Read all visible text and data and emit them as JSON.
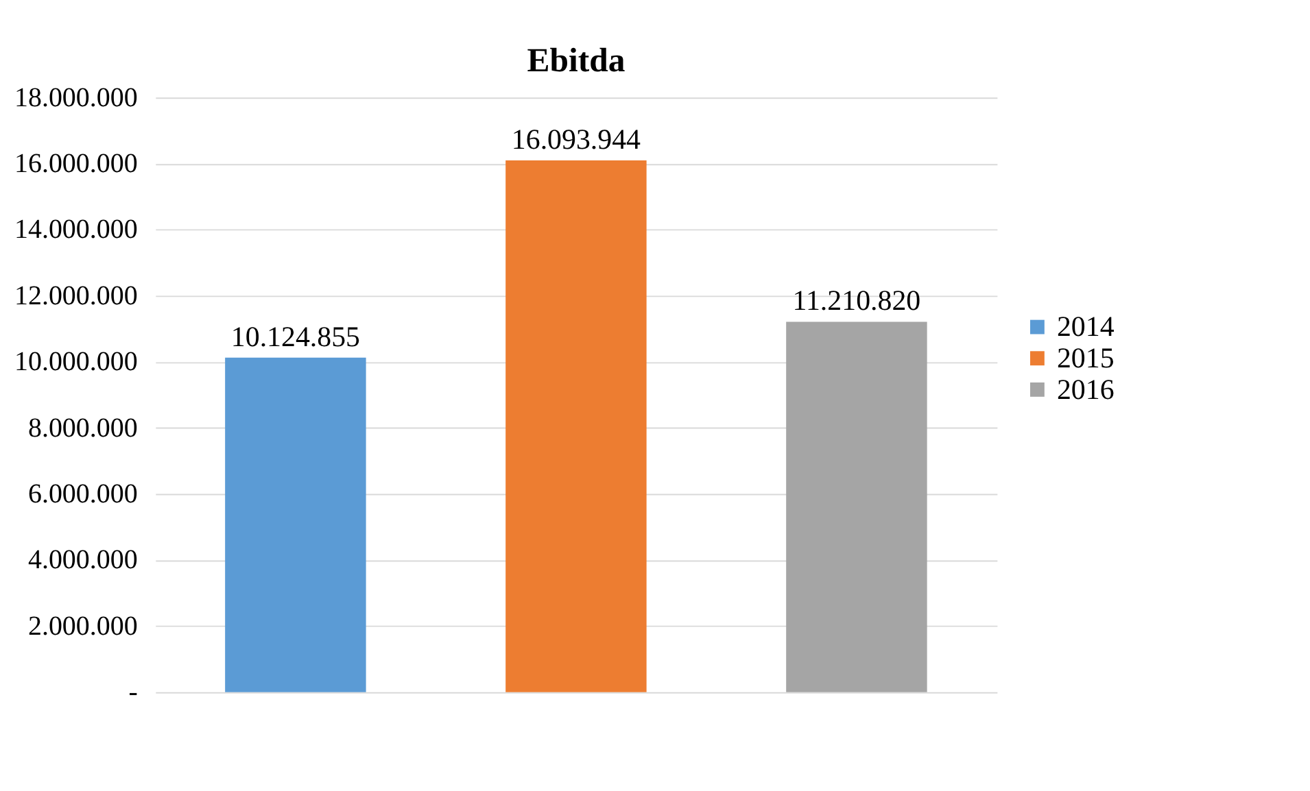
{
  "chart_data": {
    "type": "bar",
    "title": "Ebitda",
    "categories": [
      null
    ],
    "series": [
      {
        "name": "2014",
        "color": "#5b9bd5",
        "values": [
          10124855
        ],
        "value_labels": [
          "10.124.855"
        ]
      },
      {
        "name": "2015",
        "color": "#ed7d31",
        "values": [
          16093944
        ],
        "value_labels": [
          "16.093.944"
        ]
      },
      {
        "name": "2016",
        "color": "#a5a5a5",
        "values": [
          11210820
        ],
        "value_labels": [
          "11.210.820"
        ]
      }
    ],
    "ylim": [
      0,
      18000000
    ],
    "yticks": [
      {
        "value": 0,
        "label": "-"
      },
      {
        "value": 2000000,
        "label": "2.000.000"
      },
      {
        "value": 4000000,
        "label": "4.000.000"
      },
      {
        "value": 6000000,
        "label": "6.000.000"
      },
      {
        "value": 8000000,
        "label": "8.000.000"
      },
      {
        "value": 10000000,
        "label": "10.000.000"
      },
      {
        "value": 12000000,
        "label": "12.000.000"
      },
      {
        "value": 14000000,
        "label": "14.000.000"
      },
      {
        "value": 16000000,
        "label": "16.000.000"
      },
      {
        "value": 18000000,
        "label": "18.000.000"
      }
    ],
    "grid": "y",
    "legend": "right"
  }
}
